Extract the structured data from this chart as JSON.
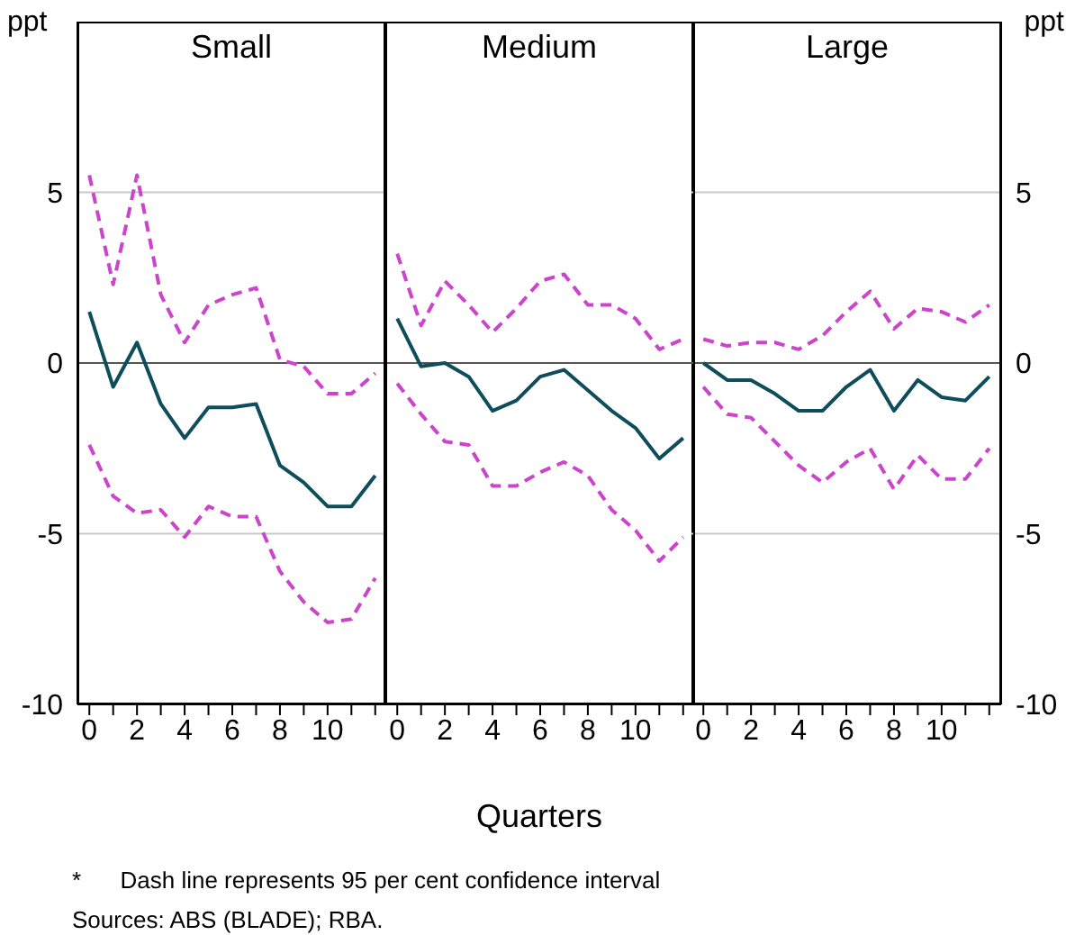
{
  "chart_data": [
    {
      "type": "line",
      "title": "Small",
      "ylabel": "ppt",
      "x": [
        0,
        1,
        2,
        3,
        4,
        5,
        6,
        7,
        8,
        9,
        10,
        11,
        12
      ],
      "xlim": [
        -0.5,
        12.5
      ],
      "xticks": [
        0,
        {
          "value": 1,
          "label": null
        },
        2,
        {
          "value": 3,
          "label": null
        },
        4,
        {
          "value": 5,
          "label": null
        },
        6,
        {
          "value": 7,
          "label": null
        },
        8,
        {
          "value": 9,
          "label": null
        },
        10,
        {
          "value": 11,
          "label": null
        },
        {
          "value": 12,
          "label": null
        }
      ],
      "ylim": [
        -10,
        10
      ],
      "yticks": [
        -10,
        -5,
        0,
        5
      ],
      "grid": "y",
      "marker": "none",
      "ref_lines": [
        {
          "axis": "y",
          "value": 0,
          "color": "#555555"
        }
      ],
      "annotations": [
        "*      Dash line represents 95 per cent confidence interval",
        "Sources: ABS (BLADE); RBA."
      ],
      "series": [
        {
          "color": "#cc44cc",
          "line_style": "dashed",
          "values": [
            5.5,
            2.3,
            5.5,
            2.0,
            0.6,
            1.7,
            2.0,
            2.2,
            0.1,
            -0.1,
            -0.9,
            -0.9,
            -0.3
          ]
        },
        {
          "color": "#cc44cc",
          "line_style": "dashed",
          "values": [
            -2.4,
            -3.9,
            -4.4,
            -4.3,
            -5.1,
            -4.2,
            -4.5,
            -4.5,
            -6.1,
            -7.0,
            -7.6,
            -7.5,
            -6.3
          ]
        },
        {
          "color": "#0e4d5c",
          "line_style": "solid",
          "values": [
            1.5,
            -0.7,
            0.6,
            -1.2,
            -2.2,
            -1.3,
            -1.3,
            -1.2,
            -3.0,
            -3.5,
            -4.2,
            -4.2,
            -3.3
          ]
        }
      ]
    },
    {
      "type": "line",
      "title": "Medium",
      "xlabel": "Quarters",
      "x": [
        0,
        1,
        2,
        3,
        4,
        5,
        6,
        7,
        8,
        9,
        10,
        11,
        12
      ],
      "xlim": [
        -0.5,
        12.5
      ],
      "xticks": [
        0,
        {
          "value": 1,
          "label": null
        },
        2,
        {
          "value": 3,
          "label": null
        },
        4,
        {
          "value": 5,
          "label": null
        },
        6,
        {
          "value": 7,
          "label": null
        },
        8,
        {
          "value": 9,
          "label": null
        },
        10,
        {
          "value": 11,
          "label": null
        },
        {
          "value": 12,
          "label": null
        }
      ],
      "ylim": [
        -10,
        10
      ],
      "yticks": [
        -10,
        -5,
        0,
        5
      ],
      "tick_labels": "x",
      "grid": "y",
      "marker": "none",
      "ref_lines": [
        {
          "axis": "y",
          "value": 0,
          "color": "#555555"
        }
      ],
      "series": [
        {
          "color": "#cc44cc",
          "line_style": "dashed",
          "values": [
            3.2,
            1.1,
            2.4,
            1.7,
            0.9,
            1.6,
            2.4,
            2.6,
            1.7,
            1.7,
            1.3,
            0.4,
            0.7
          ]
        },
        {
          "color": "#cc44cc",
          "line_style": "dashed",
          "values": [
            -0.6,
            -1.5,
            -2.3,
            -2.4,
            -3.6,
            -3.6,
            -3.2,
            -2.9,
            -3.3,
            -4.3,
            -4.9,
            -5.8,
            -5.1
          ]
        },
        {
          "color": "#0e4d5c",
          "line_style": "solid",
          "values": [
            1.3,
            -0.1,
            0.0,
            -0.4,
            -1.4,
            -1.1,
            -0.4,
            -0.2,
            -0.8,
            -1.4,
            -1.9,
            -2.8,
            -2.2
          ]
        }
      ]
    },
    {
      "type": "line",
      "title": "Large",
      "y2label": "ppt",
      "x": [
        0,
        1,
        2,
        3,
        4,
        5,
        6,
        7,
        8,
        9,
        10,
        11,
        12
      ],
      "xlim": [
        -0.5,
        12.5
      ],
      "xticks": [
        0,
        {
          "value": 1,
          "label": null
        },
        2,
        {
          "value": 3,
          "label": null
        },
        4,
        {
          "value": 5,
          "label": null
        },
        6,
        {
          "value": 7,
          "label": null
        },
        8,
        {
          "value": 9,
          "label": null
        },
        10,
        {
          "value": 11,
          "label": null
        },
        {
          "value": 12,
          "label": null
        }
      ],
      "y2lim": [
        -10,
        10
      ],
      "y2ticks": [
        -10,
        -5,
        0,
        5
      ],
      "grid": "y",
      "marker": "none",
      "ref_lines": [
        {
          "axis": "y2",
          "value": 0,
          "color": "#555555"
        }
      ],
      "series": [
        {
          "axis": "y2",
          "color": "#cc44cc",
          "line_style": "dashed",
          "values": [
            0.7,
            0.5,
            0.6,
            0.6,
            0.4,
            0.8,
            1.5,
            2.1,
            1.0,
            1.6,
            1.5,
            1.2,
            1.7
          ]
        },
        {
          "axis": "y2",
          "color": "#cc44cc",
          "line_style": "dashed",
          "values": [
            -0.7,
            -1.5,
            -1.6,
            -2.3,
            -3.0,
            -3.5,
            -2.9,
            -2.5,
            -3.7,
            -2.7,
            -3.4,
            -3.4,
            -2.5
          ]
        },
        {
          "axis": "y2",
          "color": "#0e4d5c",
          "line_style": "solid",
          "values": [
            0.0,
            -0.5,
            -0.5,
            -0.9,
            -1.4,
            -1.4,
            -0.7,
            -0.2,
            -1.4,
            -0.5,
            -1.0,
            -1.1,
            -0.4
          ]
        }
      ]
    }
  ]
}
